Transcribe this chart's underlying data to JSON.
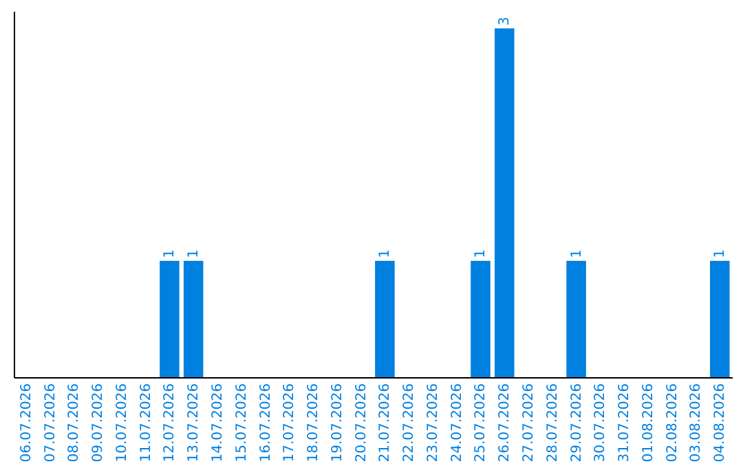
{
  "chart_data": {
    "type": "bar",
    "categories": [
      "06.07.2026",
      "07.07.2026",
      "08.07.2026",
      "09.07.2026",
      "10.07.2026",
      "11.07.2026",
      "12.07.2026",
      "13.07.2026",
      "14.07.2026",
      "15.07.2026",
      "16.07.2026",
      "17.07.2026",
      "18.07.2026",
      "19.07.2026",
      "20.07.2026",
      "21.07.2026",
      "22.07.2026",
      "23.07.2026",
      "24.07.2026",
      "25.07.2026",
      "26.07.2026",
      "27.07.2026",
      "28.07.2026",
      "29.07.2026",
      "30.07.2026",
      "31.07.2026",
      "01.08.2026",
      "02.08.2026",
      "03.08.2026",
      "04.08.2026"
    ],
    "values": [
      0,
      0,
      0,
      0,
      0,
      0,
      1,
      1,
      0,
      0,
      0,
      0,
      0,
      0,
      0,
      1,
      0,
      0,
      0,
      1,
      3,
      0,
      0,
      1,
      0,
      0,
      0,
      0,
      0,
      1
    ],
    "value_labels": [
      null,
      null,
      null,
      null,
      null,
      null,
      "1",
      "1",
      null,
      null,
      null,
      null,
      null,
      null,
      null,
      "1",
      null,
      null,
      null,
      "1",
      "3",
      null,
      null,
      "1",
      null,
      null,
      null,
      null,
      null,
      "1"
    ],
    "color": "#0080e0",
    "tick_labels": "x",
    "grid": false
  }
}
